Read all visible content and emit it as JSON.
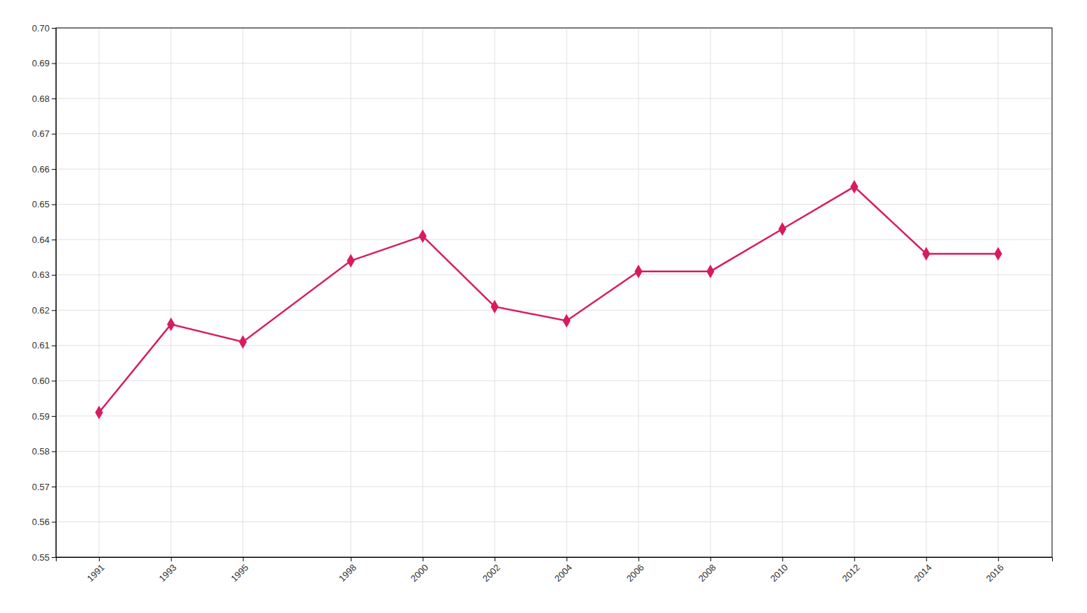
{
  "chart_data": {
    "type": "line",
    "x": [
      1991,
      1993,
      1995,
      1998,
      2000,
      2002,
      2004,
      2006,
      2008,
      2010,
      2012,
      2014,
      2016
    ],
    "values": [
      0.591,
      0.616,
      0.611,
      0.634,
      0.641,
      0.621,
      0.617,
      0.631,
      0.631,
      0.643,
      0.655,
      0.636,
      0.636
    ],
    "color": "#d81b60",
    "marker": "diamond",
    "xlim": [
      1989.8,
      2017.5
    ],
    "xticks": [
      1991,
      1993,
      1995,
      1998,
      2000,
      2002,
      2004,
      2006,
      2008,
      2010,
      2012,
      2014,
      2016
    ],
    "ylim": [
      0.55,
      0.7
    ],
    "yticks": [
      0.55,
      0.56,
      0.57,
      0.58,
      0.59,
      {
        "value": 0.6,
        "label": "0.60"
      },
      0.61,
      0.62,
      0.63,
      0.64,
      0.65,
      0.66,
      0.67,
      0.68,
      0.69,
      {
        "value": 0.7,
        "label": "0.70"
      }
    ],
    "grid": true
  }
}
